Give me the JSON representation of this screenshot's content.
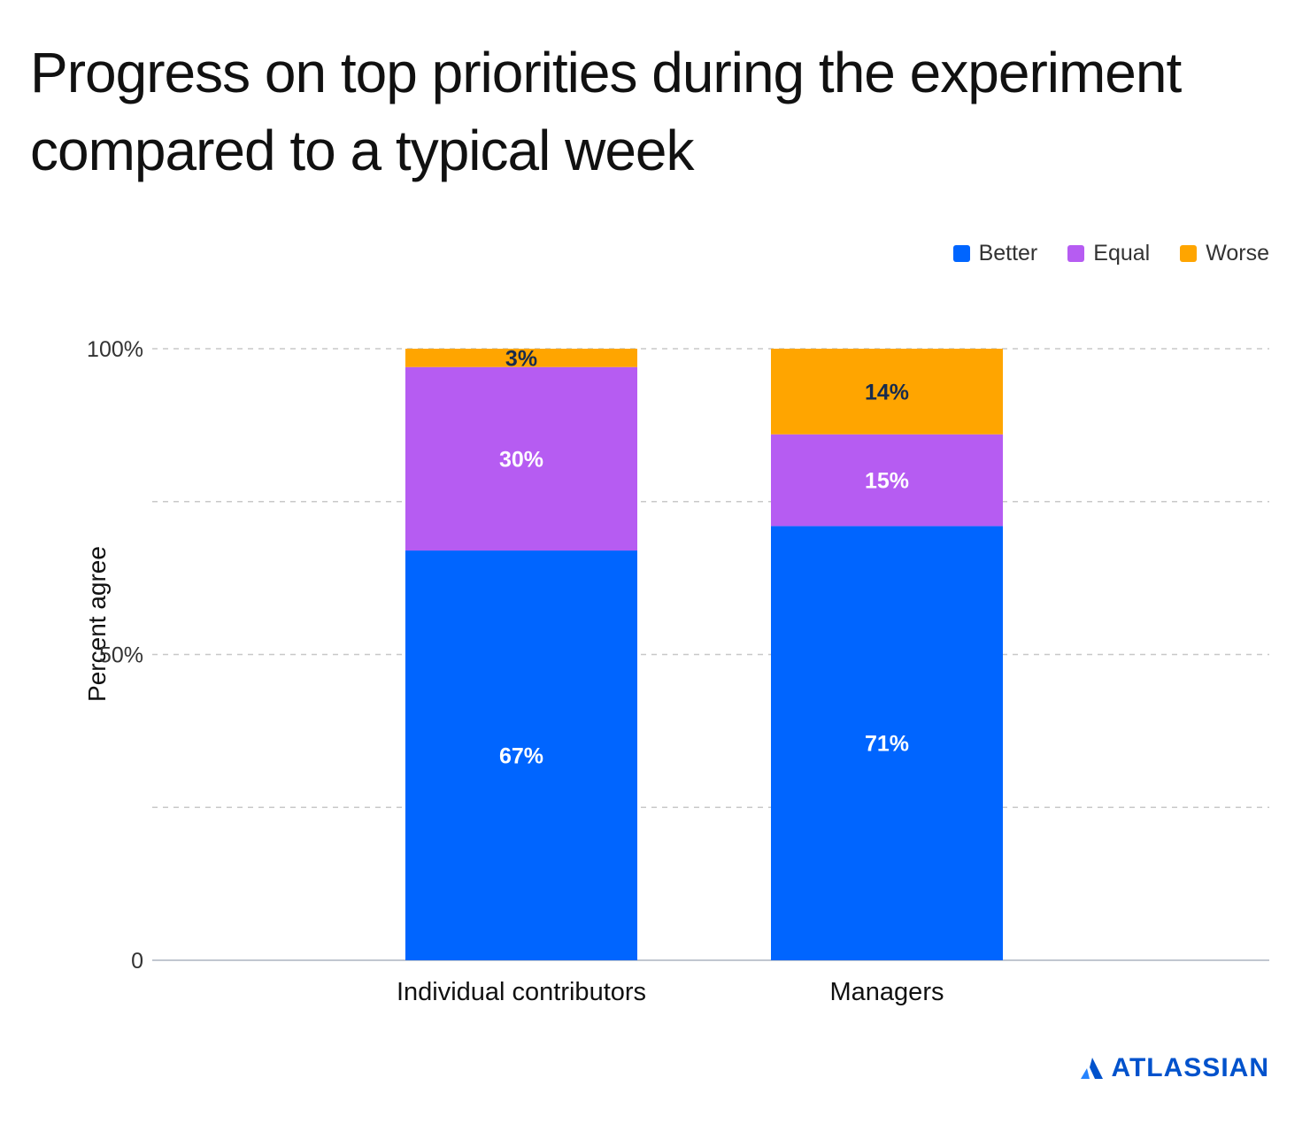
{
  "chart_data": {
    "type": "bar",
    "stacked": true,
    "title": "Progress on top priorities during the experiment compared to a typical week",
    "ylabel": "Percent agree",
    "xlabel": "",
    "categories": [
      "Individual contributors",
      "Managers"
    ],
    "series": [
      {
        "name": "Better",
        "color": "#0065ff",
        "values": [
          67,
          71
        ],
        "labels": [
          "67%",
          "71%"
        ],
        "label_color": "#ffffff"
      },
      {
        "name": "Equal",
        "color": "#b65cf2",
        "values": [
          30,
          15
        ],
        "labels": [
          "30%",
          "15%"
        ],
        "label_color": "#ffffff"
      },
      {
        "name": "Worse",
        "color": "#ffa500",
        "values": [
          3,
          14
        ],
        "labels": [
          "3%",
          "14%"
        ],
        "label_color": "#172b4d"
      }
    ],
    "ylim": [
      0,
      100
    ],
    "yticks": [
      {
        "value": 0,
        "label": "0"
      },
      {
        "value": 25,
        "label": ""
      },
      {
        "value": 50,
        "label": "50%"
      },
      {
        "value": 75,
        "label": ""
      },
      {
        "value": 100,
        "label": "100%"
      }
    ],
    "grid": true,
    "legend_position": "top-right"
  },
  "brand": {
    "name": "ATLASSIAN",
    "color": "#0052cc",
    "icon": "atlassian-logo-icon"
  }
}
